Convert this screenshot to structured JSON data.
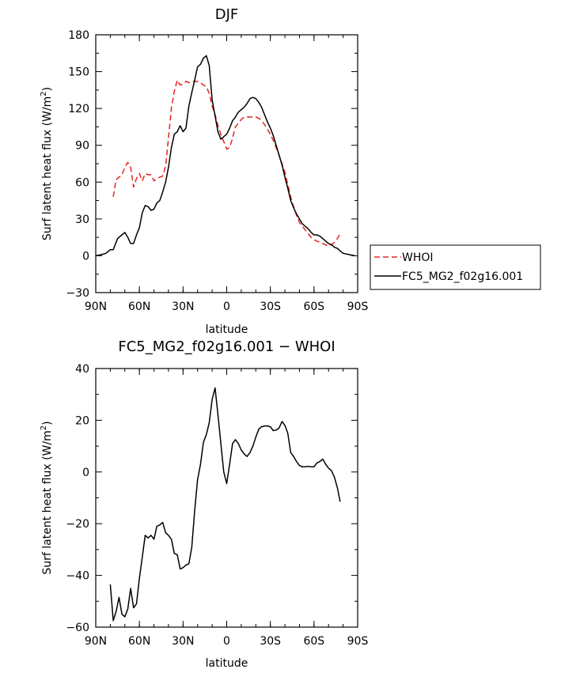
{
  "chart_data": [
    {
      "type": "line",
      "title": "DJF",
      "xlabel": "latitude",
      "ylabel": "Surf latent heat flux (W/m",
      "ylabel_sup": "2",
      "ylabel_close": ")",
      "xlim": [
        90,
        -90
      ],
      "ylim": [
        -30,
        180
      ],
      "xticks": [
        {
          "value": 90,
          "label": "90N"
        },
        {
          "value": 60,
          "label": "60N"
        },
        {
          "value": 30,
          "label": "30N"
        },
        {
          "value": 0,
          "label": "0"
        },
        {
          "value": -30,
          "label": "30S"
        },
        {
          "value": -60,
          "label": "60S"
        },
        {
          "value": -90,
          "label": "90S"
        }
      ],
      "yticks": [
        {
          "value": 180,
          "label": "180"
        },
        {
          "value": 150,
          "label": "150"
        },
        {
          "value": 120,
          "label": "120"
        },
        {
          "value": 90,
          "label": "90"
        },
        {
          "value": 60,
          "label": "60"
        },
        {
          "value": 30,
          "label": "30"
        },
        {
          "value": 0,
          "label": "0"
        },
        {
          "value": -30,
          "label": "−30"
        }
      ],
      "legend_position": "outside-right",
      "series": [
        {
          "name": "WHOI",
          "color": "#e8231f",
          "dash": "dashed",
          "x": [
            78,
            76,
            74,
            72,
            70,
            68,
            66,
            64,
            62,
            60,
            58,
            56,
            54,
            52,
            50,
            48,
            46,
            44,
            42,
            40,
            38,
            36,
            34,
            32,
            30,
            28,
            26,
            24,
            22,
            20,
            18,
            16,
            14,
            12,
            10,
            8,
            6,
            4,
            2,
            0,
            -2,
            -4,
            -6,
            -8,
            -10,
            -12,
            -14,
            -16,
            -18,
            -20,
            -22,
            -24,
            -26,
            -28,
            -30,
            -32,
            -34,
            -36,
            -38,
            -40,
            -42,
            -44,
            -46,
            -48,
            -50,
            -52,
            -54,
            -56,
            -58,
            -60,
            -62,
            -64,
            -66,
            -68,
            -70,
            -72,
            -74,
            -76,
            -78
          ],
          "y": [
            48,
            62,
            64,
            66,
            72,
            76,
            72,
            56,
            63,
            67,
            61,
            67,
            66,
            66,
            61,
            63,
            64,
            65,
            73,
            96,
            120,
            134,
            143,
            139,
            140,
            142,
            141,
            142,
            142,
            142,
            141,
            139,
            138,
            132,
            122,
            115,
            106,
            99,
            93,
            87,
            88,
            96,
            105,
            108,
            111,
            113,
            113,
            113,
            113,
            113,
            112,
            110,
            107,
            103,
            99,
            94,
            88,
            82,
            75,
            68,
            58,
            48,
            40,
            33,
            27,
            24,
            21,
            18,
            15,
            13,
            12,
            11,
            10,
            9,
            8,
            9,
            11,
            14,
            18
          ]
        },
        {
          "name": "FC5_MG2_f02g16.001",
          "color": "#000000",
          "dash": "solid",
          "x": [
            90,
            86,
            83,
            80,
            78,
            75,
            72,
            70,
            68,
            66,
            64,
            62,
            60,
            58,
            56,
            54,
            52,
            50,
            48,
            46,
            44,
            42,
            40,
            38,
            36,
            34,
            32,
            30,
            28,
            26,
            24,
            22,
            20,
            18,
            16,
            14,
            12,
            10,
            8,
            6,
            4,
            2,
            0,
            -2,
            -4,
            -6,
            -8,
            -10,
            -12,
            -14,
            -16,
            -18,
            -20,
            -22,
            -24,
            -26,
            -28,
            -30,
            -32,
            -34,
            -36,
            -38,
            -40,
            -42,
            -44,
            -46,
            -48,
            -50,
            -52,
            -54,
            -56,
            -58,
            -60,
            -62,
            -64,
            -66,
            -68,
            -70,
            -72,
            -74,
            -76,
            -78,
            -80,
            -84,
            -88
          ],
          "y": [
            0,
            1,
            2,
            5,
            5,
            14,
            17,
            19,
            15,
            10,
            10,
            17,
            23,
            35,
            41,
            40,
            37,
            38,
            43,
            45,
            52,
            60,
            72,
            88,
            99,
            101,
            106,
            101,
            104,
            122,
            133,
            143,
            154,
            156,
            161,
            163,
            155,
            127,
            114,
            101,
            95,
            97,
            99,
            104,
            110,
            113,
            117,
            119,
            121,
            124,
            128,
            129,
            128,
            125,
            121,
            115,
            109,
            104,
            98,
            90,
            82,
            74,
            64,
            55,
            45,
            39,
            34,
            30,
            26,
            24,
            22,
            19,
            17,
            17,
            16,
            14,
            12,
            10,
            9,
            7,
            6,
            4,
            2,
            1,
            0
          ]
        }
      ]
    },
    {
      "type": "line",
      "title": "FC5_MG2_f02g16.001 − WHOI",
      "xlabel": "latitude",
      "ylabel": "Surf latent heat flux (W/m",
      "ylabel_sup": "2",
      "ylabel_close": ")",
      "xlim": [
        90,
        -90
      ],
      "ylim": [
        -60,
        40
      ],
      "xticks": [
        {
          "value": 90,
          "label": "90N"
        },
        {
          "value": 60,
          "label": "60N"
        },
        {
          "value": 30,
          "label": "30N"
        },
        {
          "value": 0,
          "label": "0"
        },
        {
          "value": -30,
          "label": "30S"
        },
        {
          "value": -60,
          "label": "60S"
        },
        {
          "value": -90,
          "label": "90S"
        }
      ],
      "yticks": [
        {
          "value": 40,
          "label": "40"
        },
        {
          "value": 20,
          "label": "20"
        },
        {
          "value": 0,
          "label": "0"
        },
        {
          "value": -20,
          "label": "−20"
        },
        {
          "value": -40,
          "label": "−40"
        },
        {
          "value": -60,
          "label": "−60"
        }
      ],
      "series": [
        {
          "name": "",
          "color": "#000000",
          "dash": "solid",
          "x": [
            80,
            78,
            76,
            74,
            72,
            70,
            68,
            66,
            64,
            62,
            60,
            58,
            56,
            54,
            52,
            50,
            48,
            46,
            44,
            42,
            40,
            38,
            36,
            34,
            32,
            30,
            28,
            26,
            24,
            22,
            20,
            18,
            16,
            14,
            12,
            10,
            8,
            6,
            4,
            2,
            0,
            -2,
            -4,
            -6,
            -8,
            -10,
            -12,
            -14,
            -16,
            -18,
            -20,
            -22,
            -24,
            -26,
            -28,
            -30,
            -32,
            -34,
            -36,
            -38,
            -40,
            -42,
            -44,
            -46,
            -48,
            -50,
            -52,
            -54,
            -56,
            -58,
            -60,
            -62,
            -64,
            -66,
            -68,
            -70,
            -72,
            -74,
            -76,
            -78
          ],
          "y": [
            -43.5,
            -57.5,
            -54,
            -48.5,
            -55,
            -56,
            -53,
            -45,
            -52.5,
            -51,
            -41,
            -33,
            -24.5,
            -25.5,
            -24.5,
            -26,
            -21,
            -20.5,
            -19.5,
            -23.5,
            -24.5,
            -26,
            -31.5,
            -32,
            -37.5,
            -37,
            -36,
            -35.5,
            -29,
            -15,
            -3,
            3,
            11.5,
            14.5,
            19,
            28,
            32.5,
            22,
            11,
            0,
            -4.5,
            3,
            11,
            12.5,
            11,
            8.5,
            7,
            6,
            7.5,
            10,
            13.5,
            16.5,
            17.5,
            17.8,
            17.8,
            17.5,
            16,
            16.2,
            17,
            19.5,
            18,
            15,
            7.5,
            6,
            4,
            2.5,
            2,
            2,
            2.2,
            2,
            2,
            3.5,
            4,
            5,
            3,
            1.5,
            0.5,
            -2,
            -6,
            -11.5
          ]
        }
      ]
    }
  ]
}
